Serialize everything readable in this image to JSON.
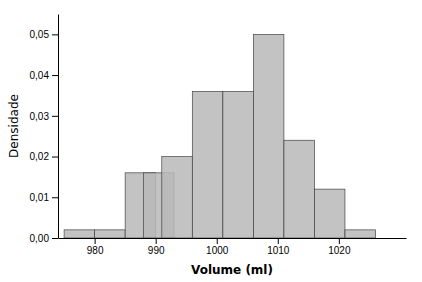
{
  "chart_data": {
    "type": "histogram",
    "x": [
      975,
      980,
      985,
      988,
      991,
      996,
      1001,
      1006,
      1011,
      1016,
      1021,
      1026
    ],
    "width": 5,
    "values": [
      0.002,
      0.002,
      0.016,
      0.016,
      0.02,
      0.036,
      0.036,
      0.05,
      0.024,
      0.012,
      0.002,
      0.0
    ],
    "color": "#b8b8b8",
    "xlabel": "Volume (ml)",
    "ylabel": "Densidade",
    "xlim": [
      974,
      1031
    ],
    "ylim": [
      0.0,
      0.055
    ],
    "xticks": [
      980,
      990,
      1000,
      1010,
      1020
    ],
    "yticks": [
      {
        "value": 0.0,
        "label": "0,00"
      },
      {
        "value": 0.01,
        "label": "0,01"
      },
      {
        "value": 0.02,
        "label": "0,02"
      },
      {
        "value": 0.03,
        "label": "0,03"
      },
      {
        "value": 0.04,
        "label": "0,04"
      },
      {
        "value": 0.05,
        "label": "0,05"
      }
    ],
    "grid": false
  }
}
